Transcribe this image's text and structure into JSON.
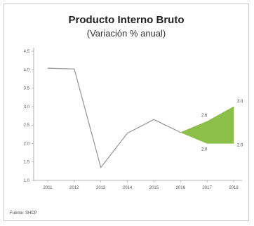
{
  "chart_data": {
    "type": "line",
    "title": "Producto Interno Bruto",
    "subtitle": "(Variación % anual)",
    "source": "Fuente: SHCP",
    "x": [
      "2011",
      "2012",
      "2013",
      "2014",
      "2015",
      "2016",
      "2017",
      "2018"
    ],
    "ylim": [
      1.0,
      4.5
    ],
    "yticks": [
      "1.0",
      "1.5",
      "2.0",
      "2.5",
      "3.0",
      "3.5",
      "4.0",
      "4.5"
    ],
    "series": [
      {
        "values": [
          4.04,
          4.02,
          1.35,
          2.28,
          2.65,
          2.3,
          null,
          null
        ]
      }
    ],
    "forecast_range": {
      "x": [
        "2016",
        "2017",
        "2018"
      ],
      "lower": [
        2.3,
        2.0,
        2.0
      ],
      "upper": [
        2.3,
        2.6,
        3.0
      ],
      "color": "#8cbf4a"
    },
    "data_labels": [
      {
        "x": "2017",
        "y": 2.6,
        "text": "2.6"
      },
      {
        "x": "2017",
        "y": 2.0,
        "text": "2.0"
      },
      {
        "x": "2018",
        "y": 3.0,
        "text": "3.0"
      },
      {
        "x": "2018",
        "y": 2.0,
        "text": "2.0"
      }
    ],
    "line_color": "#9a9a9a",
    "grid": false
  }
}
